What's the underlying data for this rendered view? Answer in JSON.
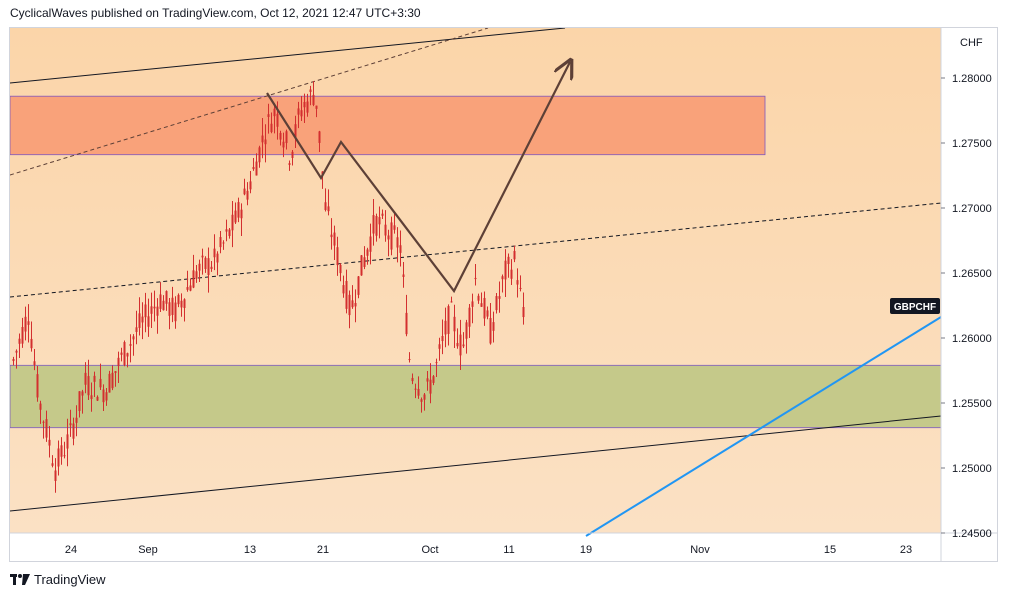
{
  "header": {
    "published": "CyclicalWaves published on TradingView.com, Oct 12, 2021 12:47 UTC+3:30"
  },
  "footer": {
    "brand": "TradingView"
  },
  "colors": {
    "background_top": "#fbd5a9",
    "background_bottom": "#fbe1c4",
    "resistance_zone": "#f9a27a",
    "support_zone": "#c5c98a",
    "candle": "#d32f2f",
    "projection": "#5d4037",
    "trendline_blue": "#2196f3",
    "price_tag": "#131722"
  },
  "chart_data": {
    "type": "candlestick",
    "symbol": "GBPCHF",
    "currency": "CHF",
    "y_ticks": [
      "1.28000",
      "1.27500",
      "1.27000",
      "1.26500",
      "1.26000",
      "1.25500",
      "1.25000",
      "1.24500"
    ],
    "x_ticks": [
      "24",
      "Sep",
      "13",
      "21",
      "Oct",
      "11",
      "19",
      "Nov",
      "15",
      "23"
    ],
    "ylim": [
      1.2445,
      1.2835
    ],
    "resistance_zone": [
      1.2741,
      1.2786
    ],
    "support_zone": [
      1.2531,
      1.2579
    ],
    "last_price_label": "GBPCHF",
    "grid": false
  }
}
